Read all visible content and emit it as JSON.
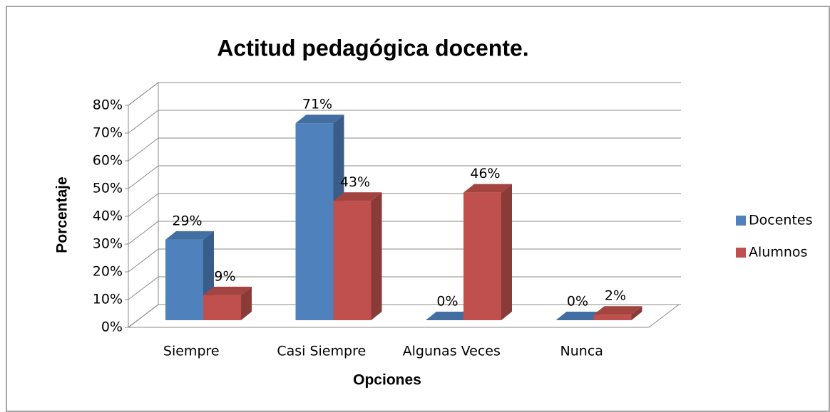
{
  "chart_data": {
    "type": "bar3d",
    "title": "Actitud pedagógica docente.",
    "x_label": "Opciones",
    "y_label": "Porcentaje",
    "categories": [
      "Siempre",
      "Casi Siempre",
      "Algunas Veces",
      "Nunca"
    ],
    "series": [
      {
        "name": "Docentes",
        "color": "#4f81bd",
        "values": [
          29,
          71,
          0,
          0
        ],
        "value_labels": [
          "29%",
          "71%",
          "0%",
          "0%"
        ]
      },
      {
        "name": "Alumnos",
        "color": "#c0504d",
        "values": [
          9,
          43,
          46,
          2
        ],
        "value_labels": [
          "9%",
          "43%",
          "46%",
          "2%"
        ]
      }
    ],
    "ylim": [
      0,
      80
    ],
    "yticks": [
      {
        "value": 0,
        "label": "0%"
      },
      {
        "value": 10,
        "label": "10%"
      },
      {
        "value": 20,
        "label": "20%"
      },
      {
        "value": 30,
        "label": "30%"
      },
      {
        "value": 40,
        "label": "40%"
      },
      {
        "value": 50,
        "label": "50%"
      },
      {
        "value": 60,
        "label": "60%"
      },
      {
        "value": 70,
        "label": "70%"
      },
      {
        "value": 80,
        "label": "80%"
      }
    ],
    "grid": true,
    "legend": "right"
  }
}
